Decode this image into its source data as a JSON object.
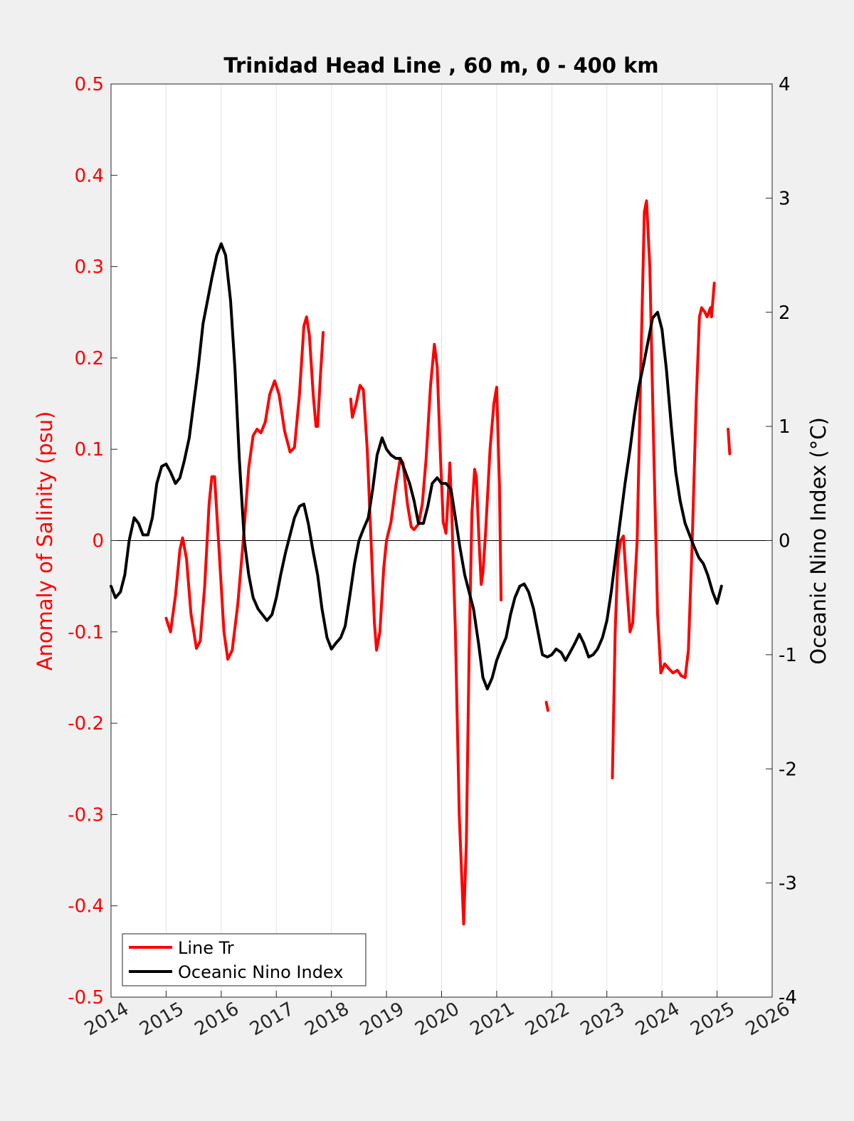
{
  "chart_data": {
    "type": "line",
    "title": "Trinidad Head Line , 60 m, 0 - 400 km",
    "xlabel": "",
    "ylabel_left": "Anomaly of Salinity (psu)",
    "ylabel_right": "Oceanic Nino Index (°C)",
    "xlim": [
      2014,
      2026
    ],
    "ylim_left": [
      -0.5,
      0.5
    ],
    "ylim_right": [
      -4,
      4
    ],
    "x_ticks": [
      "2014",
      "2015",
      "2016",
      "2017",
      "2018",
      "2019",
      "2020",
      "2021",
      "2022",
      "2023",
      "2024",
      "2025",
      "2026"
    ],
    "y_left_ticks": [
      "-0.5",
      "-0.4",
      "-0.3",
      "-0.2",
      "-0.1",
      "0",
      "0.1",
      "0.2",
      "0.3",
      "0.4",
      "0.5"
    ],
    "y_right_ticks": [
      "-4",
      "-3",
      "-2",
      "-1",
      "0",
      "1",
      "2",
      "3",
      "4"
    ],
    "grid": "vertical",
    "legend_position": "bottom-left",
    "colors": {
      "salinity": "#ff0000",
      "oni": "#000000",
      "left_axis": "#ff0000",
      "right_axis": "#000000"
    },
    "series": [
      {
        "name": "Line Tr",
        "axis": "left",
        "segments": [
          [
            [
              2015.0,
              -0.085
            ],
            [
              2015.08,
              -0.1
            ],
            [
              2015.17,
              -0.06
            ],
            [
              2015.25,
              -0.01
            ],
            [
              2015.3,
              0.003
            ],
            [
              2015.37,
              -0.02
            ],
            [
              2015.45,
              -0.08
            ],
            [
              2015.55,
              -0.118
            ],
            [
              2015.62,
              -0.11
            ],
            [
              2015.7,
              -0.05
            ],
            [
              2015.78,
              0.04
            ],
            [
              2015.83,
              0.07
            ],
            [
              2015.88,
              0.07
            ],
            [
              2015.95,
              0.0
            ],
            [
              2016.05,
              -0.1
            ],
            [
              2016.12,
              -0.13
            ],
            [
              2016.2,
              -0.12
            ],
            [
              2016.3,
              -0.07
            ],
            [
              2016.4,
              0.0
            ],
            [
              2016.5,
              0.08
            ],
            [
              2016.58,
              0.115
            ],
            [
              2016.65,
              0.122
            ],
            [
              2016.72,
              0.118
            ],
            [
              2016.8,
              0.13
            ],
            [
              2016.88,
              0.16
            ],
            [
              2016.97,
              0.175
            ],
            [
              2017.05,
              0.16
            ],
            [
              2017.15,
              0.12
            ],
            [
              2017.25,
              0.097
            ],
            [
              2017.33,
              0.102
            ],
            [
              2017.42,
              0.16
            ],
            [
              2017.5,
              0.235
            ],
            [
              2017.55,
              0.245
            ],
            [
              2017.6,
              0.225
            ],
            [
              2017.67,
              0.16
            ],
            [
              2017.72,
              0.125
            ],
            [
              2017.75,
              0.125
            ],
            [
              2017.8,
              0.18
            ],
            [
              2017.85,
              0.228
            ]
          ],
          [
            [
              2018.35,
              0.155
            ],
            [
              2018.38,
              0.135
            ],
            [
              2018.45,
              0.15
            ],
            [
              2018.52,
              0.17
            ],
            [
              2018.58,
              0.165
            ],
            [
              2018.65,
              0.1
            ],
            [
              2018.72,
              0.0
            ],
            [
              2018.78,
              -0.09
            ],
            [
              2018.82,
              -0.12
            ],
            [
              2018.88,
              -0.1
            ],
            [
              2018.95,
              -0.03
            ],
            [
              2019.0,
              0.0
            ],
            [
              2019.08,
              0.02
            ],
            [
              2019.17,
              0.06
            ],
            [
              2019.25,
              0.09
            ],
            [
              2019.3,
              0.085
            ],
            [
              2019.38,
              0.04
            ],
            [
              2019.45,
              0.015
            ],
            [
              2019.5,
              0.012
            ],
            [
              2019.58,
              0.018
            ],
            [
              2019.65,
              0.04
            ],
            [
              2019.72,
              0.09
            ],
            [
              2019.8,
              0.17
            ],
            [
              2019.87,
              0.215
            ],
            [
              2019.92,
              0.19
            ],
            [
              2019.98,
              0.09
            ],
            [
              2020.03,
              0.02
            ],
            [
              2020.08,
              0.008
            ],
            [
              2020.12,
              0.05
            ],
            [
              2020.15,
              0.085
            ],
            [
              2020.18,
              0.04
            ],
            [
              2020.25,
              -0.1
            ],
            [
              2020.32,
              -0.3
            ],
            [
              2020.4,
              -0.42
            ],
            [
              2020.45,
              -0.33
            ],
            [
              2020.5,
              -0.12
            ],
            [
              2020.55,
              0.03
            ],
            [
              2020.6,
              0.078
            ],
            [
              2020.63,
              0.07
            ],
            [
              2020.68,
              0.0
            ],
            [
              2020.72,
              -0.048
            ],
            [
              2020.75,
              -0.035
            ],
            [
              2020.8,
              0.01
            ],
            [
              2020.88,
              0.1
            ],
            [
              2020.95,
              0.15
            ],
            [
              2021.0,
              0.168
            ],
            [
              2021.05,
              0.06
            ],
            [
              2021.08,
              -0.065
            ]
          ],
          [
            [
              2021.9,
              -0.177
            ],
            [
              2021.93,
              -0.186
            ]
          ],
          [
            [
              2023.1,
              -0.26
            ],
            [
              2023.15,
              -0.1
            ],
            [
              2023.2,
              -0.02
            ],
            [
              2023.25,
              0.0
            ],
            [
              2023.3,
              0.005
            ],
            [
              2023.35,
              -0.04
            ],
            [
              2023.42,
              -0.1
            ],
            [
              2023.47,
              -0.09
            ],
            [
              2023.55,
              0.0
            ],
            [
              2023.62,
              0.2
            ],
            [
              2023.68,
              0.36
            ],
            [
              2023.72,
              0.372
            ],
            [
              2023.78,
              0.3
            ],
            [
              2023.85,
              0.1
            ],
            [
              2023.92,
              -0.08
            ],
            [
              2023.98,
              -0.145
            ],
            [
              2024.05,
              -0.135
            ],
            [
              2024.12,
              -0.14
            ],
            [
              2024.2,
              -0.145
            ],
            [
              2024.28,
              -0.142
            ],
            [
              2024.35,
              -0.148
            ],
            [
              2024.42,
              -0.15
            ],
            [
              2024.48,
              -0.12
            ],
            [
              2024.55,
              0.0
            ],
            [
              2024.62,
              0.15
            ],
            [
              2024.68,
              0.245
            ],
            [
              2024.72,
              0.255
            ],
            [
              2024.78,
              0.25
            ],
            [
              2024.82,
              0.245
            ],
            [
              2024.88,
              0.255
            ],
            [
              2024.9,
              0.245
            ],
            [
              2024.95,
              0.282
            ]
          ],
          [
            [
              2025.2,
              0.122
            ],
            [
              2025.23,
              0.095
            ]
          ]
        ]
      },
      {
        "name": "Oceanic Nino Index",
        "axis": "right",
        "segments": [
          [
            [
              2014.0,
              -0.4
            ],
            [
              2014.08,
              -0.5
            ],
            [
              2014.17,
              -0.45
            ],
            [
              2014.25,
              -0.3
            ],
            [
              2014.33,
              0.0
            ],
            [
              2014.42,
              0.2
            ],
            [
              2014.5,
              0.15
            ],
            [
              2014.58,
              0.05
            ],
            [
              2014.67,
              0.05
            ],
            [
              2014.75,
              0.2
            ],
            [
              2014.83,
              0.5
            ],
            [
              2014.92,
              0.65
            ],
            [
              2015.0,
              0.67
            ],
            [
              2015.08,
              0.6
            ],
            [
              2015.17,
              0.5
            ],
            [
              2015.25,
              0.55
            ],
            [
              2015.33,
              0.7
            ],
            [
              2015.42,
              0.9
            ],
            [
              2015.5,
              1.2
            ],
            [
              2015.58,
              1.5
            ],
            [
              2015.67,
              1.9
            ],
            [
              2015.75,
              2.1
            ],
            [
              2015.83,
              2.3
            ],
            [
              2015.92,
              2.5
            ],
            [
              2016.0,
              2.6
            ],
            [
              2016.08,
              2.5
            ],
            [
              2016.17,
              2.1
            ],
            [
              2016.25,
              1.5
            ],
            [
              2016.33,
              0.7
            ],
            [
              2016.42,
              0.0
            ],
            [
              2016.5,
              -0.3
            ],
            [
              2016.58,
              -0.5
            ],
            [
              2016.67,
              -0.6
            ],
            [
              2016.75,
              -0.65
            ],
            [
              2016.83,
              -0.7
            ],
            [
              2016.92,
              -0.65
            ],
            [
              2017.0,
              -0.5
            ],
            [
              2017.08,
              -0.3
            ],
            [
              2017.17,
              -0.1
            ],
            [
              2017.25,
              0.05
            ],
            [
              2017.33,
              0.2
            ],
            [
              2017.42,
              0.3
            ],
            [
              2017.5,
              0.32
            ],
            [
              2017.58,
              0.15
            ],
            [
              2017.67,
              -0.1
            ],
            [
              2017.75,
              -0.3
            ],
            [
              2017.83,
              -0.6
            ],
            [
              2017.92,
              -0.85
            ],
            [
              2018.0,
              -0.95
            ],
            [
              2018.08,
              -0.9
            ],
            [
              2018.17,
              -0.85
            ],
            [
              2018.25,
              -0.75
            ],
            [
              2018.33,
              -0.5
            ],
            [
              2018.42,
              -0.2
            ],
            [
              2018.5,
              0.0
            ],
            [
              2018.58,
              0.1
            ],
            [
              2018.67,
              0.2
            ],
            [
              2018.75,
              0.45
            ],
            [
              2018.83,
              0.75
            ],
            [
              2018.92,
              0.9
            ],
            [
              2019.0,
              0.8
            ],
            [
              2019.08,
              0.75
            ],
            [
              2019.17,
              0.72
            ],
            [
              2019.25,
              0.72
            ],
            [
              2019.33,
              0.62
            ],
            [
              2019.42,
              0.5
            ],
            [
              2019.5,
              0.35
            ],
            [
              2019.58,
              0.15
            ],
            [
              2019.67,
              0.15
            ],
            [
              2019.75,
              0.3
            ],
            [
              2019.83,
              0.5
            ],
            [
              2019.92,
              0.55
            ],
            [
              2020.0,
              0.5
            ],
            [
              2020.08,
              0.5
            ],
            [
              2020.17,
              0.45
            ],
            [
              2020.25,
              0.2
            ],
            [
              2020.33,
              -0.05
            ],
            [
              2020.42,
              -0.3
            ],
            [
              2020.5,
              -0.45
            ],
            [
              2020.58,
              -0.6
            ],
            [
              2020.67,
              -0.9
            ],
            [
              2020.75,
              -1.2
            ],
            [
              2020.83,
              -1.3
            ],
            [
              2020.92,
              -1.2
            ],
            [
              2021.0,
              -1.05
            ],
            [
              2021.08,
              -0.95
            ],
            [
              2021.17,
              -0.85
            ],
            [
              2021.25,
              -0.65
            ],
            [
              2021.33,
              -0.5
            ],
            [
              2021.42,
              -0.4
            ],
            [
              2021.5,
              -0.38
            ],
            [
              2021.58,
              -0.45
            ],
            [
              2021.67,
              -0.6
            ],
            [
              2021.75,
              -0.8
            ],
            [
              2021.83,
              -1.0
            ],
            [
              2021.92,
              -1.02
            ],
            [
              2022.0,
              -1.0
            ],
            [
              2022.08,
              -0.95
            ],
            [
              2022.17,
              -0.98
            ],
            [
              2022.25,
              -1.05
            ],
            [
              2022.33,
              -0.98
            ],
            [
              2022.42,
              -0.9
            ],
            [
              2022.5,
              -0.82
            ],
            [
              2022.58,
              -0.9
            ],
            [
              2022.67,
              -1.02
            ],
            [
              2022.75,
              -1.0
            ],
            [
              2022.83,
              -0.95
            ],
            [
              2022.92,
              -0.85
            ],
            [
              2023.0,
              -0.7
            ],
            [
              2023.08,
              -0.45
            ],
            [
              2023.17,
              -0.1
            ],
            [
              2023.25,
              0.2
            ],
            [
              2023.33,
              0.5
            ],
            [
              2023.42,
              0.8
            ],
            [
              2023.5,
              1.1
            ],
            [
              2023.58,
              1.35
            ],
            [
              2023.67,
              1.55
            ],
            [
              2023.75,
              1.75
            ],
            [
              2023.83,
              1.95
            ],
            [
              2023.92,
              2.0
            ],
            [
              2024.0,
              1.85
            ],
            [
              2024.08,
              1.5
            ],
            [
              2024.17,
              1.0
            ],
            [
              2024.25,
              0.6
            ],
            [
              2024.33,
              0.35
            ],
            [
              2024.42,
              0.15
            ],
            [
              2024.5,
              0.05
            ],
            [
              2024.58,
              -0.05
            ],
            [
              2024.67,
              -0.15
            ],
            [
              2024.75,
              -0.2
            ],
            [
              2024.83,
              -0.3
            ],
            [
              2024.92,
              -0.45
            ],
            [
              2025.0,
              -0.55
            ],
            [
              2025.08,
              -0.4
            ]
          ]
        ]
      }
    ]
  }
}
